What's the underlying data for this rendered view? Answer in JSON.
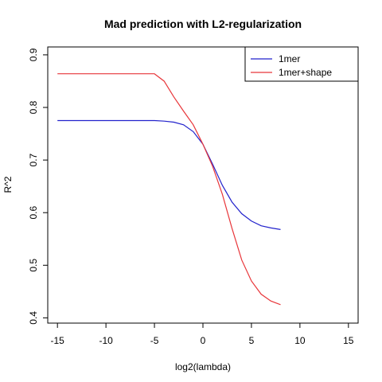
{
  "chart_data": {
    "type": "line",
    "title": "Mad prediction with L2-regularization",
    "xlabel": "log2(lambda)",
    "ylabel": "R^2",
    "xlim": [
      -16,
      16
    ],
    "ylim": [
      0.39,
      0.915
    ],
    "xticks": [
      -15,
      -10,
      -5,
      0,
      5,
      10,
      15
    ],
    "yticks": [
      0.4,
      0.5,
      0.6,
      0.7,
      0.8,
      0.9
    ],
    "grid": false,
    "legend_position": "top-right",
    "series": [
      {
        "name": "1mer",
        "color": "#2222cc",
        "x": [
          -15,
          -14,
          -13,
          -12,
          -11,
          -10,
          -9,
          -8,
          -7,
          -6,
          -5,
          -4,
          -3,
          -2,
          -1,
          0,
          1,
          2,
          3,
          4,
          5,
          6,
          7,
          8
        ],
        "y": [
          0.775,
          0.775,
          0.775,
          0.775,
          0.775,
          0.775,
          0.775,
          0.775,
          0.775,
          0.775,
          0.775,
          0.774,
          0.772,
          0.767,
          0.754,
          0.73,
          0.692,
          0.652,
          0.62,
          0.598,
          0.584,
          0.575,
          0.571,
          0.568
        ]
      },
      {
        "name": "1mer+shape",
        "color": "#e8363a",
        "x": [
          -15,
          -14,
          -13,
          -12,
          -11,
          -10,
          -9,
          -8,
          -7,
          -6,
          -5,
          -4,
          -3,
          -2,
          -1,
          0,
          1,
          2,
          3,
          4,
          5,
          6,
          7,
          8
        ],
        "y": [
          0.864,
          0.864,
          0.864,
          0.864,
          0.864,
          0.864,
          0.864,
          0.864,
          0.864,
          0.864,
          0.864,
          0.85,
          0.82,
          0.793,
          0.767,
          0.73,
          0.688,
          0.635,
          0.57,
          0.51,
          0.47,
          0.445,
          0.432,
          0.425
        ]
      }
    ]
  }
}
